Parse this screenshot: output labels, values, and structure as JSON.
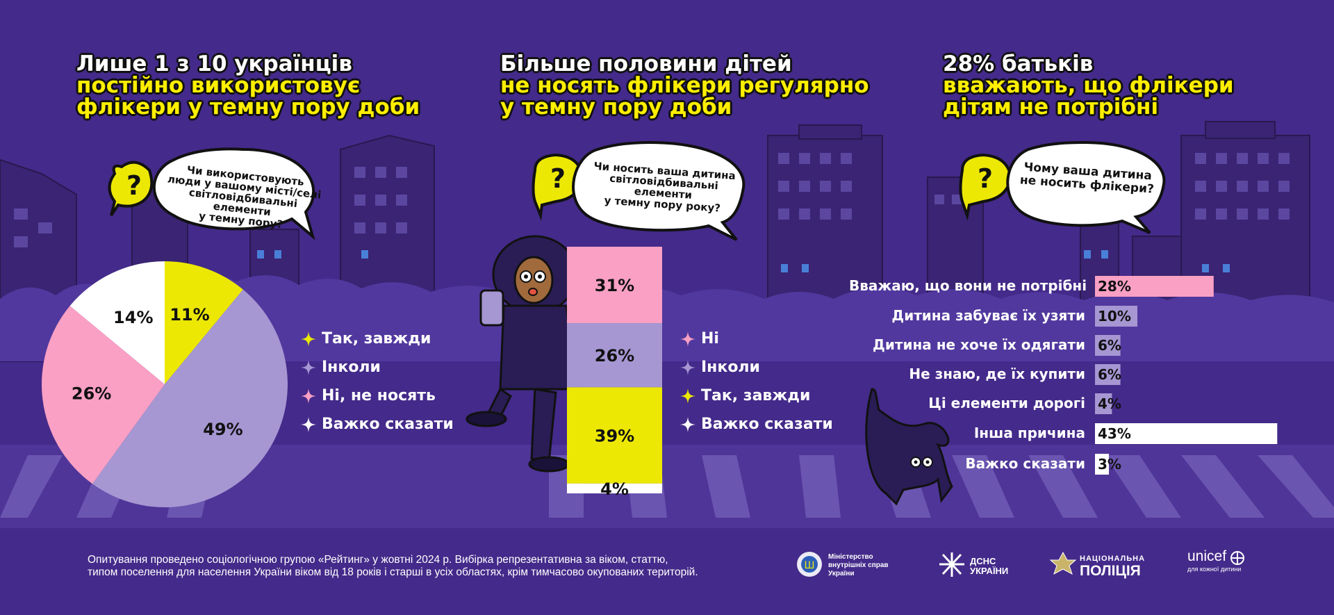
{
  "colors": {
    "background": "#442a8a",
    "yellow": "#ece804",
    "lilac": "#a697d3",
    "pink": "#f9a0c4",
    "white": "#ffffff",
    "building": "#3a2473",
    "crosswalk": "#6a55b0"
  },
  "panel1": {
    "headline": [
      "Лише 1 з 10 українців",
      "постійно використовує",
      "флікери у темну пору доби"
    ],
    "question": "Чи використовують люди у вашому місті/селі світловідбивальні елементи у темну пору?",
    "question_lines": [
      "Чи використовують",
      "люди у вашому місті/селі",
      "світловідбивальні елементи",
      "у темну пору?"
    ]
  },
  "panel2": {
    "headline": [
      "Більше половини дітей",
      "не носять флікери регулярно",
      "у темну пору доби"
    ],
    "question_lines": [
      "Чи носить ваша дитина",
      "світловідбивальні елементи",
      "у темну пору року?"
    ]
  },
  "panel3": {
    "headline": [
      "28% батьків",
      "вважають, що флікери",
      "дітям не потрібні"
    ],
    "question_lines": [
      "Чому ваша дитина",
      "не носить флікери?"
    ]
  },
  "chart_data": [
    {
      "type": "pie",
      "slices": [
        {
          "label": "Так, завжди",
          "value": 11,
          "label_text": "11%",
          "color": "#ece804"
        },
        {
          "label": "Інколи",
          "value": 49,
          "label_text": "49%",
          "color": "#a697d3"
        },
        {
          "label": "Ні, не носять",
          "value": 26,
          "label_text": "26%",
          "color": "#f9a0c4"
        },
        {
          "label": "Важко сказати",
          "value": 14,
          "label_text": "14%",
          "color": "#ffffff"
        }
      ],
      "legend": [
        {
          "label": "Так, завжди",
          "color": "#ece804"
        },
        {
          "label": "Інколи",
          "color": "#a697d3"
        },
        {
          "label": "Ні, не носять",
          "color": "#f9a0c4"
        },
        {
          "label": "Важко сказати",
          "color": "#ffffff"
        }
      ]
    },
    {
      "type": "bar",
      "stacked": true,
      "segments": [
        {
          "label": "Ні",
          "value": 31,
          "label_text": "31%",
          "color": "#f9a0c4"
        },
        {
          "label": "Інколи",
          "value": 26,
          "label_text": "26%",
          "color": "#a697d3"
        },
        {
          "label": "Так, завжди",
          "value": 39,
          "label_text": "39%",
          "color": "#ece804"
        },
        {
          "label": "Важко сказати",
          "value": 4,
          "label_text": "4%",
          "color": "#ffffff"
        }
      ],
      "legend": [
        {
          "label": "Ні",
          "color": "#f9a0c4"
        },
        {
          "label": "Інколи",
          "color": "#a697d3"
        },
        {
          "label": "Так, завжди",
          "color": "#ece804"
        },
        {
          "label": "Важко сказати",
          "color": "#ffffff"
        }
      ]
    },
    {
      "type": "bar",
      "orientation": "horizontal",
      "categories": [
        "Вважаю, що вони не потрібні",
        "Дитина забуває їх узяти",
        "Дитина не хоче їх одягати",
        "Не знаю, де їх купити",
        "Ці елементи дорогі",
        "Інша причина",
        "Важко сказати"
      ],
      "values": [
        28,
        10,
        6,
        6,
        4,
        43,
        3
      ],
      "value_labels": [
        "28%",
        "10%",
        "6%",
        "6%",
        "4%",
        "43%",
        "3%"
      ],
      "colors": [
        "#f9a0c4",
        "#a697d3",
        "#a697d3",
        "#a697d3",
        "#a697d3",
        "#ffffff",
        "#ffffff"
      ]
    }
  ],
  "footnote": [
    "Опитування проведено соціологічною групою «Рейтинг» у жовтні 2024 р. Вибірка репрезентативна за віком, статтю,",
    "типом поселення для населення України віком від 18 років і старші в усіх областях, крім тимчасово окупованих територій."
  ],
  "logos": {
    "mvs": [
      "Міністерство",
      "внутрішніх справ",
      "України"
    ],
    "dsns": [
      "ДСНС",
      "УКРАЇНИ"
    ],
    "police": [
      "НАЦІОНАЛЬНА",
      "ПОЛІЦІЯ"
    ],
    "unicef": [
      "unicef",
      "для кожної дитини"
    ]
  }
}
